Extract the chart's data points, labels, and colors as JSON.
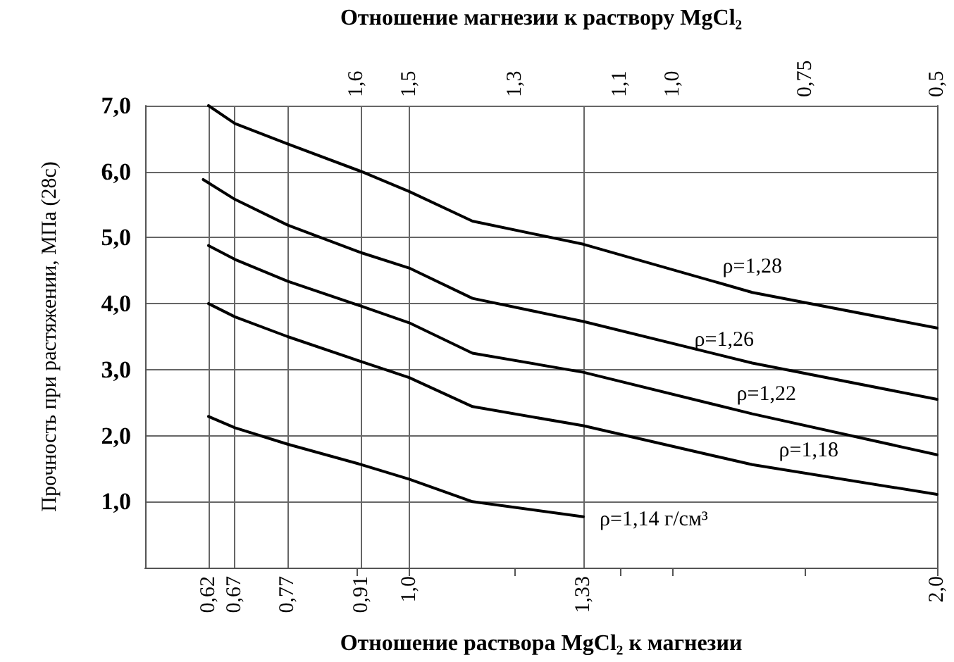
{
  "chart_data": {
    "type": "line",
    "xlabel": "Отношение раствора MgCl₂ к магнезии",
    "x2label": "Отношение магнезии к раствору MgCl₂",
    "ylabel": "Прочность при растяжении, МПа (28с)",
    "xlim": [
      0.5,
      2.0
    ],
    "xticks": [
      {
        "value": 0.62,
        "label": "0,62"
      },
      {
        "value": 0.67,
        "label": "0,67"
      },
      {
        "value": 0.77,
        "label": "0,77"
      },
      {
        "value": 0.91,
        "label": "0,91"
      },
      {
        "value": 1.0,
        "label": "1,0"
      },
      {
        "value": 1.33,
        "label": "1,33"
      },
      {
        "value": 2.0,
        "label": "2,0"
      }
    ],
    "x2lim": [
      2.0,
      0.5
    ],
    "x2ticks": [
      {
        "value": 1.6,
        "label": "1,6"
      },
      {
        "value": 1.5,
        "label": "1,5"
      },
      {
        "value": 1.3,
        "label": "1,3"
      },
      {
        "value": 1.1,
        "label": "1,1"
      },
      {
        "value": 1.0,
        "label": "1,0"
      },
      {
        "value": 0.75,
        "label": "0,75"
      },
      {
        "value": 0.5,
        "label": "0,5"
      }
    ],
    "ylim": [
      0,
      7
    ],
    "yticks": [
      {
        "value": 1,
        "label": "1,0"
      },
      {
        "value": 2,
        "label": "2,0"
      },
      {
        "value": 3,
        "label": "3,0"
      },
      {
        "value": 4,
        "label": "4,0"
      },
      {
        "value": 5,
        "label": "5,0"
      },
      {
        "value": 6,
        "label": "6,0"
      },
      {
        "value": 7,
        "label": "7,0"
      }
    ],
    "grid": true,
    "legend": false,
    "marker": "none",
    "line_style": "solid",
    "series": [
      {
        "name": "ρ=1,28",
        "color": "#000000",
        "x": [
          0.62,
          0.67,
          0.77,
          0.91,
          1.0,
          1.12,
          1.33,
          1.65,
          2.0
        ],
        "values": [
          7.0,
          6.73,
          6.42,
          6.0,
          5.7,
          5.25,
          4.9,
          4.17,
          3.63
        ]
      },
      {
        "name": "ρ=1,26",
        "color": "#000000",
        "x": [
          0.61,
          0.67,
          0.77,
          0.91,
          1.0,
          1.12,
          1.33,
          1.65,
          2.0
        ],
        "values": [
          5.88,
          5.58,
          5.19,
          4.77,
          4.54,
          4.08,
          3.73,
          3.1,
          2.55
        ]
      },
      {
        "name": "ρ=1,22",
        "color": "#000000",
        "x": [
          0.62,
          0.67,
          0.77,
          0.91,
          1.0,
          1.12,
          1.33,
          1.65,
          2.0
        ],
        "values": [
          4.88,
          4.67,
          4.34,
          3.96,
          3.71,
          3.25,
          2.96,
          2.33,
          1.71
        ]
      },
      {
        "name": "ρ=1,18",
        "color": "#000000",
        "x": [
          0.62,
          0.67,
          0.77,
          0.91,
          1.0,
          1.12,
          1.33,
          1.65,
          2.0
        ],
        "values": [
          4.0,
          3.8,
          3.5,
          3.12,
          2.88,
          2.44,
          2.15,
          1.56,
          1.11
        ]
      },
      {
        "name": "ρ=1,14 г/см³",
        "color": "#000000",
        "x": [
          0.62,
          0.67,
          0.77,
          0.91,
          1.0,
          1.12,
          1.33
        ],
        "values": [
          2.29,
          2.12,
          1.87,
          1.56,
          1.34,
          1.0,
          0.77
        ]
      }
    ]
  }
}
